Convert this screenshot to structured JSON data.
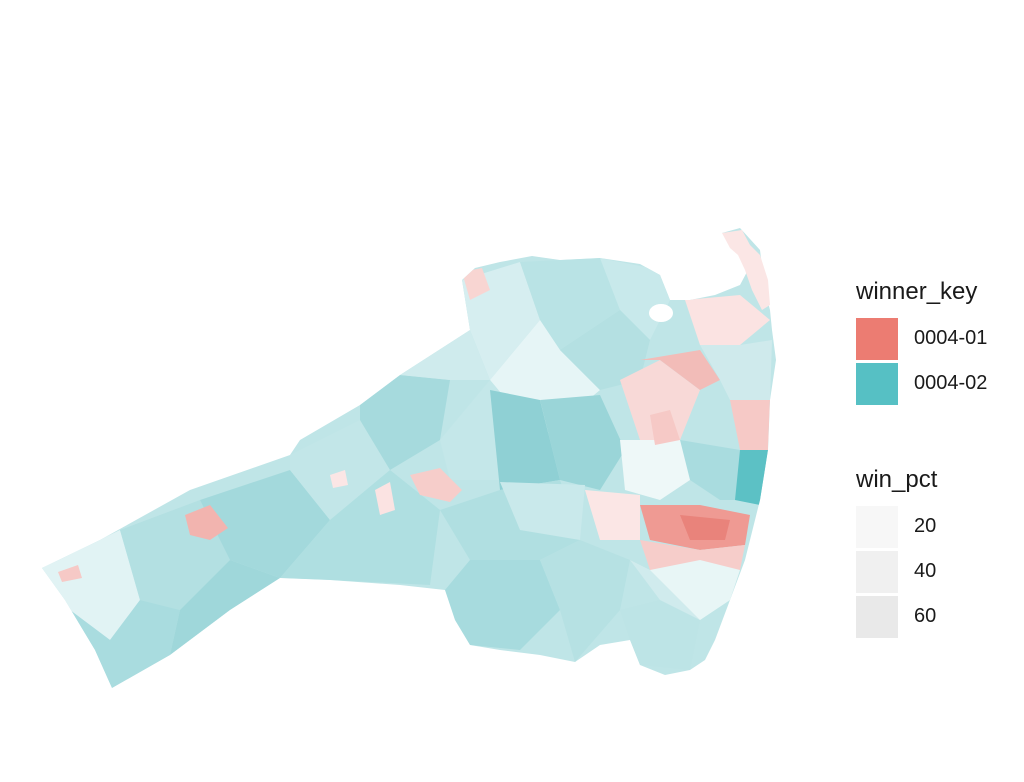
{
  "colors": {
    "winner_0004_01": "#ec7c72",
    "winner_0004_02": "#56c0c4",
    "background": "#ffffff"
  },
  "legend_winner": {
    "title": "winner_key",
    "items": [
      {
        "label": "0004-01",
        "color": "#ec7c72"
      },
      {
        "label": "0004-02",
        "color": "#56c0c4"
      }
    ]
  },
  "legend_pct": {
    "title": "win_pct",
    "items": [
      {
        "label": "20",
        "color": "#f7f7f7"
      },
      {
        "label": "40",
        "color": "#f0f0f0"
      },
      {
        "label": "60",
        "color": "#e9e9e9"
      }
    ]
  }
}
